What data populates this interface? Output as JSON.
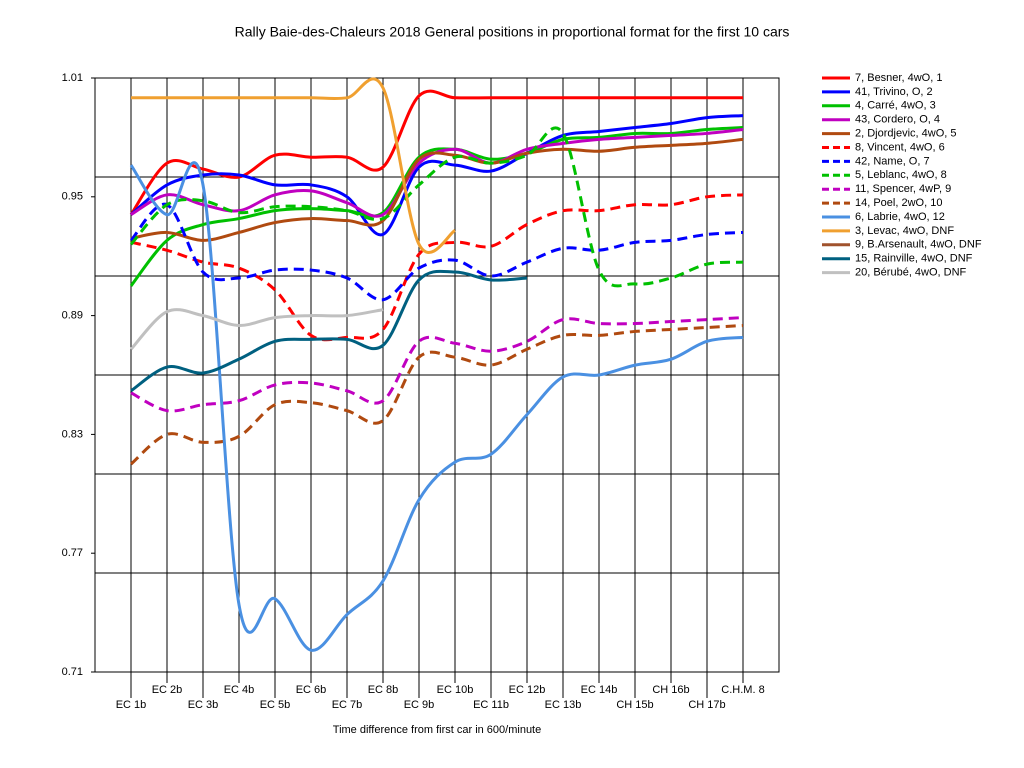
{
  "chart_data": {
    "type": "line",
    "title": "Rally Baie-des-Chaleurs 2018  General positions in proportional format for the first 10 cars",
    "x_label": "Time difference from first car in 600/minute",
    "categories": [
      "EC 1b",
      "EC 2b",
      "EC 3b",
      "EC 4b",
      "EC 5b",
      "EC 6b",
      "EC 7b",
      "EC 8b",
      "EC 9b",
      "EC 10b",
      "EC 11b",
      "EC 12b",
      "EC 13b",
      "EC 14b",
      "CH 15b",
      "CH 16b",
      "CH 17b",
      "C.H.M. 8"
    ],
    "ylim": [
      0.71,
      1.01
    ],
    "yticks": [
      {
        "value": 1.01,
        "label": "1.01"
      },
      0.95,
      0.89,
      0.83,
      0.77,
      0.71
    ],
    "ygrid": [
      0.96,
      0.91,
      0.86,
      0.81,
      0.76
    ],
    "grid": true,
    "legend": "right",
    "series": [
      {
        "name": "7, Besner, 4wO, 1",
        "color": "#ff0000",
        "dash": false,
        "values": [
          0.941,
          0.967,
          0.964,
          0.96,
          0.971,
          0.97,
          0.97,
          0.965,
          1.001,
          1.0,
          1.0,
          1.0,
          1.0,
          1.0,
          1.0,
          1.0,
          1.0,
          1.0
        ]
      },
      {
        "name": "41, Trivino, O, 2",
        "color": "#0000ff",
        "dash": false,
        "values": [
          0.941,
          0.956,
          0.961,
          0.961,
          0.956,
          0.956,
          0.95,
          0.931,
          0.965,
          0.966,
          0.963,
          0.972,
          0.981,
          0.983,
          0.985,
          0.987,
          0.99,
          0.991
        ]
      },
      {
        "name": "4, Carré, 4wO, 3",
        "color": "#00c000",
        "dash": false,
        "values": [
          0.905,
          0.928,
          0.936,
          0.939,
          0.943,
          0.944,
          0.943,
          0.942,
          0.97,
          0.974,
          0.969,
          0.972,
          0.979,
          0.98,
          0.982,
          0.982,
          0.984,
          0.985
        ]
      },
      {
        "name": "43, Cordero, O, 4",
        "color": "#c000c0",
        "dash": false,
        "values": [
          0.941,
          0.951,
          0.946,
          0.943,
          0.951,
          0.953,
          0.947,
          0.941,
          0.967,
          0.974,
          0.967,
          0.974,
          0.977,
          0.979,
          0.98,
          0.981,
          0.982,
          0.984
        ]
      },
      {
        "name": "2, Djordjevic, 4wO, 5",
        "color": "#b04a10",
        "dash": false,
        "values": [
          0.929,
          0.932,
          0.928,
          0.932,
          0.937,
          0.939,
          0.938,
          0.938,
          0.969,
          0.971,
          0.967,
          0.972,
          0.974,
          0.973,
          0.975,
          0.976,
          0.977,
          0.979
        ]
      },
      {
        "name": "8, Vincent, 4wO, 6",
        "color": "#ff0000",
        "dash": true,
        "values": [
          0.927,
          0.923,
          0.917,
          0.914,
          0.903,
          0.88,
          0.879,
          0.883,
          0.921,
          0.927,
          0.925,
          0.936,
          0.943,
          0.943,
          0.946,
          0.946,
          0.95,
          0.951
        ]
      },
      {
        "name": "42, Name, O, 7",
        "color": "#0000ff",
        "dash": true,
        "values": [
          0.928,
          0.946,
          0.912,
          0.909,
          0.913,
          0.913,
          0.909,
          0.898,
          0.914,
          0.918,
          0.91,
          0.917,
          0.924,
          0.923,
          0.927,
          0.928,
          0.931,
          0.932
        ]
      },
      {
        "name": "5, Leblanc, 4wO, 8",
        "color": "#00c000",
        "dash": true,
        "values": [
          0.926,
          0.946,
          0.948,
          0.942,
          0.945,
          0.945,
          0.943,
          0.939,
          0.956,
          0.97,
          0.967,
          0.971,
          0.982,
          0.913,
          0.906,
          0.909,
          0.916,
          0.917
        ]
      },
      {
        "name": "11, Spencer, 4wP, 9",
        "color": "#c000c0",
        "dash": true,
        "values": [
          0.851,
          0.842,
          0.845,
          0.847,
          0.855,
          0.856,
          0.852,
          0.847,
          0.877,
          0.876,
          0.872,
          0.877,
          0.888,
          0.886,
          0.886,
          0.887,
          0.888,
          0.889
        ]
      },
      {
        "name": "14, Poel, 2wO, 10",
        "color": "#b04a10",
        "dash": true,
        "values": [
          0.815,
          0.83,
          0.826,
          0.829,
          0.845,
          0.846,
          0.842,
          0.837,
          0.869,
          0.869,
          0.865,
          0.873,
          0.88,
          0.88,
          0.882,
          0.883,
          0.884,
          0.885
        ]
      },
      {
        "name": "6, Labrie, 4wO, 12",
        "color": "#4a90e2",
        "dash": false,
        "values": [
          0.966,
          0.941,
          0.956,
          0.744,
          0.747,
          0.721,
          0.739,
          0.756,
          0.797,
          0.816,
          0.82,
          0.84,
          0.859,
          0.86,
          0.865,
          0.868,
          0.877,
          0.879
        ]
      },
      {
        "name": "3, Levac, 4wO, DNF",
        "color": "#f0a030",
        "dash": false,
        "values": [
          1.0,
          1.0,
          1.0,
          1.0,
          1.0,
          1.0,
          1.0,
          1.005,
          0.926,
          0.933,
          null,
          null,
          null,
          null,
          null,
          null,
          null,
          null
        ]
      },
      {
        "name": "9, B.Arsenault, 4wO, DNF",
        "color": "#a0522d",
        "dash": false,
        "values": [
          null,
          null,
          null,
          null,
          null,
          null,
          null,
          null,
          null,
          null,
          null,
          null,
          null,
          null,
          null,
          null,
          null,
          null
        ]
      },
      {
        "name": "15, Rainville, 4wO, DNF",
        "color": "#006080",
        "dash": false,
        "values": [
          0.852,
          0.864,
          0.861,
          0.868,
          0.877,
          0.878,
          0.878,
          0.875,
          0.908,
          0.912,
          0.908,
          0.909,
          null,
          null,
          null,
          null,
          null,
          null
        ]
      },
      {
        "name": "20, Bérubé, 4wO, DNF",
        "color": "#c0c0c0",
        "dash": false,
        "values": [
          0.873,
          0.892,
          0.89,
          0.885,
          0.889,
          0.89,
          0.89,
          0.893,
          null,
          null,
          null,
          null,
          null,
          null,
          null,
          null,
          null,
          null
        ]
      }
    ]
  }
}
